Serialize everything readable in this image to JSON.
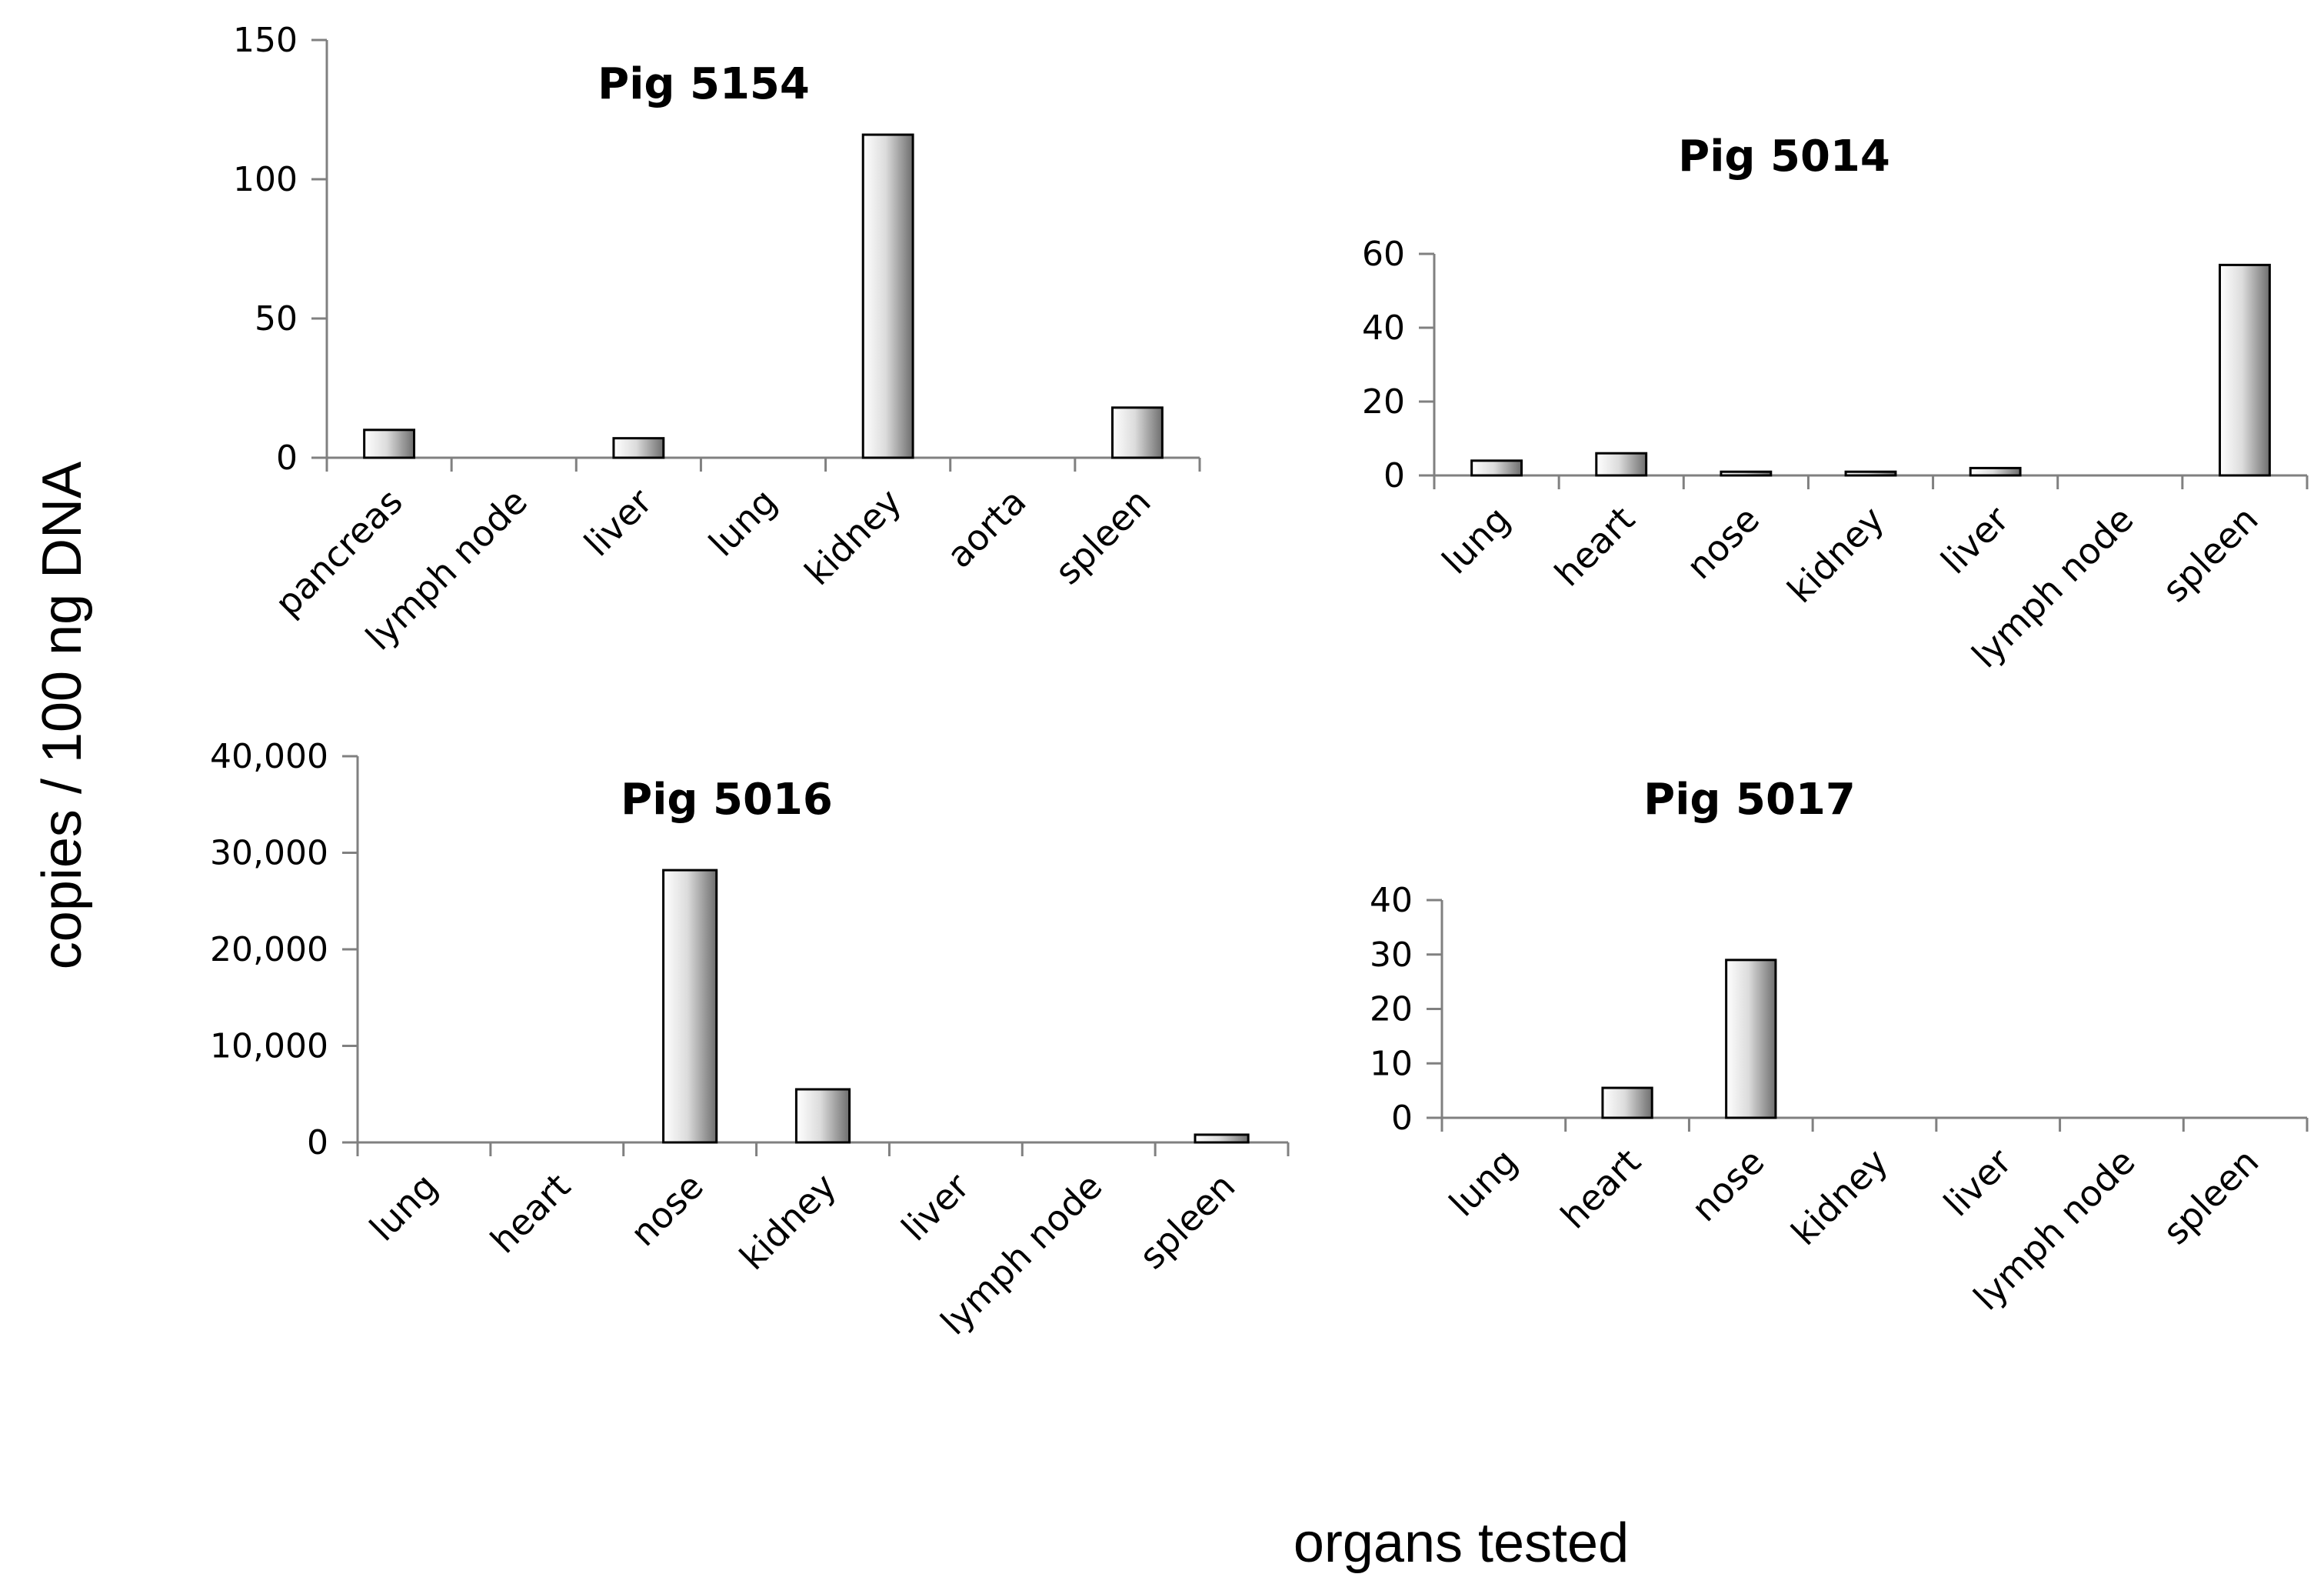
{
  "figure": {
    "ylabel": "copies / 100 ng DNA",
    "xlabel": "organs tested"
  },
  "colors": {
    "axis": "#808080",
    "bar_outline": "#000000",
    "bar_light": "#ffffff",
    "bar_dark": "#7a7a7a"
  },
  "chart_data": [
    {
      "type": "bar",
      "title": "Pig 5154",
      "categories": [
        "pancreas",
        "lymph node",
        "liver",
        "lung",
        "kidney",
        "aorta",
        "spleen"
      ],
      "values": [
        10,
        0,
        7,
        0,
        116,
        0,
        18
      ],
      "ylim": [
        0,
        150
      ],
      "yticks": [
        0,
        50,
        100,
        150
      ],
      "ytick_labels": [
        "0",
        "50",
        "100",
        "150"
      ],
      "xlabel": "",
      "ylabel": ""
    },
    {
      "type": "bar",
      "title": "Pig 5014",
      "categories": [
        "lung",
        "heart",
        "nose",
        "kidney",
        "liver",
        "lymph node",
        "spleen"
      ],
      "values": [
        4,
        6,
        1,
        1,
        2,
        0,
        57
      ],
      "ylim": [
        0,
        60
      ],
      "yticks": [
        0,
        20,
        40,
        60
      ],
      "ytick_labels": [
        "0",
        "20",
        "40",
        "60"
      ],
      "xlabel": "",
      "ylabel": ""
    },
    {
      "type": "bar",
      "title": "Pig 5016",
      "categories": [
        "lung",
        "heart",
        "nose",
        "kidney",
        "liver",
        "lymph node",
        "spleen"
      ],
      "values": [
        0,
        0,
        28200,
        5500,
        0,
        0,
        800
      ],
      "ylim": [
        0,
        40000
      ],
      "yticks": [
        0,
        10000,
        20000,
        30000,
        40000
      ],
      "ytick_labels": [
        "0",
        "10,000",
        "20,000",
        "30,000",
        "40,000"
      ],
      "xlabel": "",
      "ylabel": ""
    },
    {
      "type": "bar",
      "title": "Pig 5017",
      "categories": [
        "lung",
        "heart",
        "nose",
        "kidney",
        "liver",
        "lymph node",
        "spleen"
      ],
      "values": [
        0,
        5.5,
        29,
        0,
        0,
        0,
        0
      ],
      "ylim": [
        0,
        40
      ],
      "yticks": [
        0,
        10,
        20,
        30,
        40
      ],
      "ytick_labels": [
        "0",
        "10",
        "20",
        "30",
        "40"
      ],
      "xlabel": "",
      "ylabel": ""
    }
  ]
}
